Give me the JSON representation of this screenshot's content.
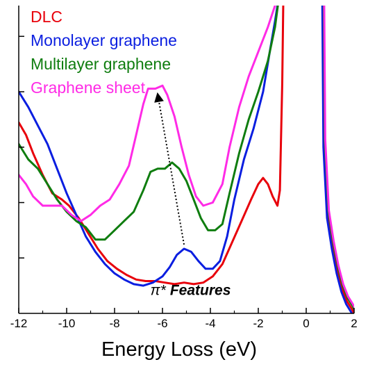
{
  "chart_data": {
    "type": "line",
    "xlabel": "Energy Loss (eV)",
    "ylabel": "",
    "xlim": [
      -12,
      2
    ],
    "ylim": [
      0,
      1
    ],
    "x_ticks": [
      "-12",
      "-10",
      "-8",
      "-6",
      "-4",
      "-2",
      "0",
      "2"
    ],
    "y_ticks_labeled": false,
    "grid": false,
    "legend_position": "top-left",
    "series": [
      {
        "name": "DLC",
        "color": "#e8000b",
        "points": [
          [
            -12,
            0.62
          ],
          [
            -11.7,
            0.58
          ],
          [
            -11.4,
            0.52
          ],
          [
            -11,
            0.45
          ],
          [
            -10.6,
            0.39
          ],
          [
            -10.2,
            0.37
          ],
          [
            -9.9,
            0.35
          ],
          [
            -9.5,
            0.31
          ],
          [
            -9.1,
            0.26
          ],
          [
            -8.7,
            0.21
          ],
          [
            -8.3,
            0.17
          ],
          [
            -7.9,
            0.145
          ],
          [
            -7.5,
            0.125
          ],
          [
            -7.1,
            0.11
          ],
          [
            -6.7,
            0.105
          ],
          [
            -6.3,
            0.105
          ],
          [
            -5.9,
            0.1
          ],
          [
            -5.5,
            0.095
          ],
          [
            -5.1,
            0.1
          ],
          [
            -4.7,
            0.095
          ],
          [
            -4.3,
            0.1
          ],
          [
            -3.9,
            0.12
          ],
          [
            -3.5,
            0.16
          ],
          [
            -3.1,
            0.23
          ],
          [
            -2.7,
            0.3
          ],
          [
            -2.3,
            0.37
          ],
          [
            -2.0,
            0.42
          ],
          [
            -1.8,
            0.44
          ],
          [
            -1.6,
            0.42
          ],
          [
            -1.4,
            0.38
          ],
          [
            -1.2,
            0.35
          ],
          [
            -1.1,
            0.4
          ],
          [
            -1.0,
            0.75
          ],
          [
            -0.95,
            1.05
          ]
        ]
      },
      {
        "name": "Monolayer graphene",
        "color": "#0a1ee0",
        "points": [
          [
            -12,
            0.72
          ],
          [
            -11.6,
            0.67
          ],
          [
            -11.2,
            0.61
          ],
          [
            -10.8,
            0.55
          ],
          [
            -10.4,
            0.47
          ],
          [
            -10.0,
            0.39
          ],
          [
            -9.6,
            0.32
          ],
          [
            -9.2,
            0.25
          ],
          [
            -8.8,
            0.2
          ],
          [
            -8.4,
            0.16
          ],
          [
            -8.0,
            0.13
          ],
          [
            -7.6,
            0.11
          ],
          [
            -7.2,
            0.095
          ],
          [
            -6.8,
            0.09
          ],
          [
            -6.4,
            0.1
          ],
          [
            -6.0,
            0.12
          ],
          [
            -5.7,
            0.15
          ],
          [
            -5.4,
            0.19
          ],
          [
            -5.1,
            0.21
          ],
          [
            -4.8,
            0.2
          ],
          [
            -4.5,
            0.17
          ],
          [
            -4.2,
            0.145
          ],
          [
            -3.9,
            0.145
          ],
          [
            -3.6,
            0.17
          ],
          [
            -3.3,
            0.25
          ],
          [
            -3.0,
            0.37
          ],
          [
            -2.6,
            0.5
          ],
          [
            -2.2,
            0.6
          ],
          [
            -1.8,
            0.72
          ],
          [
            -1.5,
            0.86
          ],
          [
            -1.3,
            0.95
          ],
          [
            -1.1,
            1.05
          ]
        ]
      },
      {
        "name": "Multilayer graphene",
        "color": "#0f7d0f",
        "points": [
          [
            -12,
            0.55
          ],
          [
            -11.6,
            0.5
          ],
          [
            -11.2,
            0.47
          ],
          [
            -10.8,
            0.42
          ],
          [
            -10.4,
            0.37
          ],
          [
            -10.0,
            0.33
          ],
          [
            -9.6,
            0.3
          ],
          [
            -9.2,
            0.28
          ],
          [
            -8.8,
            0.24
          ],
          [
            -8.4,
            0.24
          ],
          [
            -8.0,
            0.27
          ],
          [
            -7.6,
            0.3
          ],
          [
            -7.2,
            0.33
          ],
          [
            -6.8,
            0.4
          ],
          [
            -6.5,
            0.46
          ],
          [
            -6.2,
            0.47
          ],
          [
            -5.9,
            0.47
          ],
          [
            -5.6,
            0.49
          ],
          [
            -5.3,
            0.47
          ],
          [
            -5.0,
            0.43
          ],
          [
            -4.7,
            0.37
          ],
          [
            -4.4,
            0.31
          ],
          [
            -4.1,
            0.27
          ],
          [
            -3.8,
            0.27
          ],
          [
            -3.5,
            0.29
          ],
          [
            -3.2,
            0.39
          ],
          [
            -2.8,
            0.52
          ],
          [
            -2.4,
            0.63
          ],
          [
            -2.0,
            0.72
          ],
          [
            -1.6,
            0.82
          ],
          [
            -1.3,
            0.93
          ],
          [
            -1.1,
            1.05
          ]
        ]
      },
      {
        "name": "Graphene sheet",
        "color": "#ff2ae6",
        "points": [
          [
            -12,
            0.45
          ],
          [
            -11.7,
            0.42
          ],
          [
            -11.4,
            0.38
          ],
          [
            -11.0,
            0.35
          ],
          [
            -10.6,
            0.35
          ],
          [
            -10.2,
            0.35
          ],
          [
            -9.8,
            0.32
          ],
          [
            -9.4,
            0.3
          ],
          [
            -9.0,
            0.32
          ],
          [
            -8.6,
            0.35
          ],
          [
            -8.2,
            0.37
          ],
          [
            -7.8,
            0.42
          ],
          [
            -7.4,
            0.48
          ],
          [
            -7.1,
            0.58
          ],
          [
            -6.8,
            0.68
          ],
          [
            -6.6,
            0.73
          ],
          [
            -6.3,
            0.73
          ],
          [
            -6.0,
            0.74
          ],
          [
            -5.8,
            0.71
          ],
          [
            -5.5,
            0.64
          ],
          [
            -5.2,
            0.54
          ],
          [
            -4.9,
            0.45
          ],
          [
            -4.6,
            0.38
          ],
          [
            -4.3,
            0.35
          ],
          [
            -3.9,
            0.36
          ],
          [
            -3.5,
            0.42
          ],
          [
            -3.2,
            0.54
          ],
          [
            -2.8,
            0.67
          ],
          [
            -2.4,
            0.77
          ],
          [
            -2.0,
            0.85
          ],
          [
            -1.6,
            0.93
          ],
          [
            -1.3,
            1.0
          ],
          [
            -1.1,
            1.05
          ]
        ]
      }
    ],
    "tail_points": [
      [
        0.7,
        1.05
      ],
      [
        0.75,
        0.55
      ],
      [
        0.9,
        0.32
      ],
      [
        1.1,
        0.22
      ],
      [
        1.3,
        0.14
      ],
      [
        1.5,
        0.08
      ],
      [
        1.7,
        0.04
      ],
      [
        1.9,
        0.015
      ],
      [
        2.0,
        0.0
      ]
    ],
    "annotation": {
      "symbol": "π*",
      "text": "Features",
      "arrow_from": [
        -5.1,
        0.21
      ],
      "arrow_to": [
        -6.2,
        0.73
      ],
      "label_at": [
        -5.0,
        -0.06
      ]
    }
  }
}
